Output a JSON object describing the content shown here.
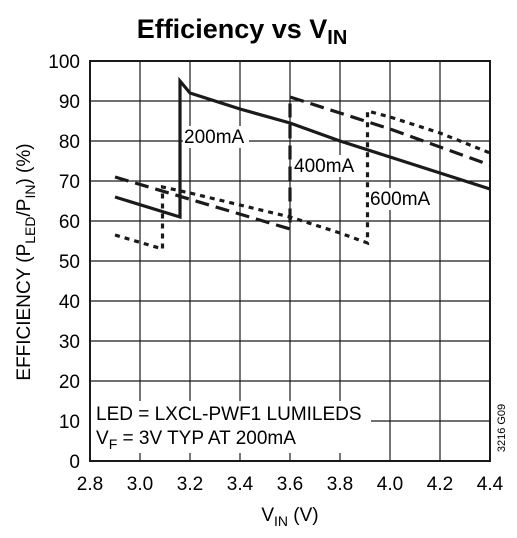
{
  "chart_data": {
    "type": "line",
    "title": "Efficiency vs V",
    "title_subscript": "IN",
    "xlabel": "V",
    "xlabel_subscript": "IN",
    "xlabel_suffix": " (V)",
    "ylabel_parts": [
      "EFFICIENCY (P",
      "LED",
      "/P",
      "IN",
      ") (%)"
    ],
    "xlim": [
      2.8,
      4.4
    ],
    "ylim": [
      0,
      100
    ],
    "xticks": [
      "2.8",
      "3.0",
      "3.2",
      "3.4",
      "3.6",
      "3.8",
      "4.0",
      "4.2",
      "4.4"
    ],
    "yticks": [
      "0",
      "10",
      "20",
      "30",
      "40",
      "50",
      "60",
      "70",
      "80",
      "90",
      "100"
    ],
    "grid": true,
    "series": [
      {
        "name": "200mA",
        "style": "solid",
        "x": [
          2.9,
          3.16,
          3.16,
          3.2,
          3.4,
          3.6,
          3.8,
          4.0,
          4.2,
          4.4
        ],
        "y": [
          66.0,
          61.0,
          95.0,
          92.0,
          88.0,
          84.5,
          80.0,
          76.0,
          72.0,
          68.0
        ]
      },
      {
        "name": "400mA",
        "style": "dashed",
        "x": [
          2.9,
          3.6,
          3.6,
          3.8,
          4.0,
          4.2,
          4.4
        ],
        "y": [
          71.0,
          58.0,
          91.0,
          87.0,
          83.0,
          78.5,
          74.0
        ]
      },
      {
        "name": "600mA",
        "style": "dotted",
        "x": [
          2.9,
          3.09,
          3.09,
          3.2,
          3.4,
          3.6,
          3.8,
          3.91,
          3.91,
          4.0,
          4.2,
          4.4
        ],
        "y": [
          56.5,
          53.0,
          68.5,
          67.0,
          64.0,
          61.0,
          57.0,
          54.5,
          87.5,
          86.0,
          82.0,
          77.0
        ]
      }
    ],
    "series_labels": [
      "200mA",
      "400mA",
      "600mA"
    ],
    "annotation_lines": [
      "LED = LXCL-PWF1 LUMILEDS",
      "V",
      "F",
      " = 3V TYP AT 200mA"
    ],
    "figure_code": "3216 G09"
  }
}
